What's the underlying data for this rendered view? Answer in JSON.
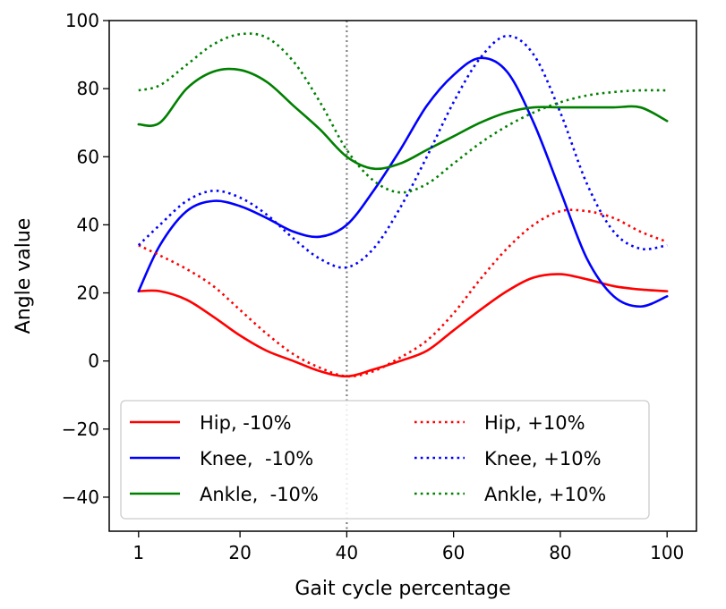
{
  "chart_data": {
    "type": "line",
    "title": "",
    "xlabel": "Gait cycle percentage",
    "ylabel": "Angle value",
    "xlim": [
      -4.5,
      105.5
    ],
    "ylim": [
      -50,
      100
    ],
    "xticks": [
      1,
      20,
      40,
      60,
      80,
      100
    ],
    "yticks": [
      -40,
      -20,
      0,
      20,
      40,
      60,
      80,
      100
    ],
    "ytick_labels": [
      "−40",
      "−20",
      "0",
      "20",
      "40",
      "60",
      "80",
      "100"
    ],
    "vline": {
      "x": 40,
      "style": "dotted",
      "color": "#808080"
    },
    "legend": {
      "location": "lower-center",
      "columns": 2
    },
    "series": [
      {
        "name": "Hip, -10%",
        "color": "#ff0000",
        "style": "solid",
        "x": [
          1,
          5,
          10,
          15,
          20,
          25,
          30,
          35,
          40,
          45,
          50,
          55,
          60,
          65,
          70,
          75,
          80,
          85,
          90,
          95,
          100
        ],
        "y": [
          20.5,
          20.5,
          18,
          13,
          7.5,
          3,
          0,
          -3,
          -4.5,
          -2.5,
          0,
          3,
          9,
          15,
          20.5,
          24.5,
          25.5,
          24,
          22,
          21,
          20.5
        ]
      },
      {
        "name": "Knee,  -10%",
        "color": "#0000ff",
        "style": "solid",
        "x": [
          1,
          5,
          10,
          15,
          20,
          25,
          30,
          35,
          40,
          45,
          50,
          55,
          60,
          65,
          70,
          75,
          80,
          85,
          90,
          95,
          100
        ],
        "y": [
          20.5,
          34,
          44,
          47,
          45.5,
          42,
          38,
          36.5,
          40,
          50,
          62,
          75,
          84,
          89,
          85,
          70,
          50,
          30,
          19,
          16,
          19
        ]
      },
      {
        "name": "Ankle,  -10%",
        "color": "#008000",
        "style": "solid",
        "x": [
          1,
          5,
          10,
          15,
          20,
          25,
          30,
          35,
          40,
          45,
          50,
          55,
          60,
          65,
          70,
          75,
          80,
          85,
          90,
          95,
          100
        ],
        "y": [
          69.5,
          70,
          80,
          85,
          85.5,
          82,
          75,
          68,
          60,
          56.5,
          58,
          62,
          66,
          70,
          73,
          74.5,
          74.5,
          74.5,
          74.5,
          74.5,
          70.5
        ]
      },
      {
        "name": "Hip, +10%",
        "color": "#ff0000",
        "style": "dotted",
        "x": [
          1,
          5,
          10,
          15,
          20,
          25,
          30,
          35,
          40,
          45,
          50,
          55,
          60,
          65,
          70,
          75,
          80,
          85,
          90,
          95,
          100
        ],
        "y": [
          34,
          31,
          27,
          22,
          15,
          8,
          2,
          -2,
          -4.5,
          -3,
          1,
          6,
          14,
          24,
          33,
          40,
          44,
          44,
          42,
          38,
          35
        ]
      },
      {
        "name": "Knee, +10%",
        "color": "#0000ff",
        "style": "dotted",
        "x": [
          1,
          5,
          10,
          15,
          20,
          25,
          30,
          35,
          40,
          45,
          50,
          55,
          60,
          65,
          70,
          75,
          80,
          85,
          90,
          95,
          100
        ],
        "y": [
          34,
          40,
          47,
          50,
          48,
          43,
          36,
          30,
          27.5,
          33,
          45,
          60,
          76,
          89,
          95.5,
          90,
          73,
          52,
          38,
          33,
          34
        ]
      },
      {
        "name": "Ankle, +10%",
        "color": "#008000",
        "style": "dotted",
        "x": [
          1,
          5,
          10,
          15,
          20,
          25,
          30,
          35,
          40,
          45,
          50,
          55,
          60,
          65,
          70,
          75,
          80,
          85,
          90,
          95,
          100
        ],
        "y": [
          79.5,
          81,
          87,
          93,
          96,
          95,
          88,
          76,
          62,
          53,
          49.5,
          52,
          58,
          64,
          69,
          73,
          76,
          78,
          79,
          79.5,
          79.5
        ]
      }
    ]
  }
}
